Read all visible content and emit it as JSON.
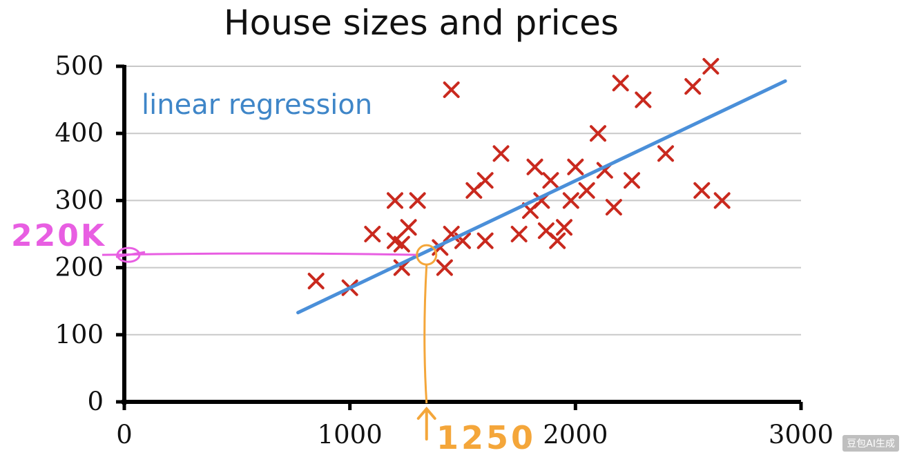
{
  "chart_data": {
    "type": "scatter",
    "title": "House sizes and prices",
    "xlabel": "",
    "ylabel": "",
    "xlim": [
      0,
      3000
    ],
    "ylim": [
      0,
      500
    ],
    "x_ticks": [
      "0",
      "1000",
      "2000",
      "3000"
    ],
    "y_ticks": [
      "0",
      "100",
      "200",
      "300",
      "400",
      "500"
    ],
    "grid": true,
    "series": [
      {
        "marker": "x",
        "color": "#c9291e",
        "points": [
          [
            850,
            180
          ],
          [
            1000,
            170
          ],
          [
            1100,
            250
          ],
          [
            1200,
            240
          ],
          [
            1200,
            300
          ],
          [
            1230,
            200
          ],
          [
            1230,
            235
          ],
          [
            1260,
            260
          ],
          [
            1300,
            300
          ],
          [
            1400,
            230
          ],
          [
            1420,
            200
          ],
          [
            1450,
            250
          ],
          [
            1450,
            465
          ],
          [
            1500,
            240
          ],
          [
            1550,
            315
          ],
          [
            1600,
            330
          ],
          [
            1600,
            240
          ],
          [
            1670,
            370
          ],
          [
            1750,
            250
          ],
          [
            1800,
            285
          ],
          [
            1820,
            350
          ],
          [
            1850,
            300
          ],
          [
            1870,
            255
          ],
          [
            1890,
            330
          ],
          [
            1920,
            240
          ],
          [
            1950,
            260
          ],
          [
            1980,
            300
          ],
          [
            2000,
            350
          ],
          [
            2050,
            315
          ],
          [
            2100,
            400
          ],
          [
            2130,
            345
          ],
          [
            2170,
            290
          ],
          [
            2200,
            475
          ],
          [
            2250,
            330
          ],
          [
            2300,
            450
          ],
          [
            2400,
            370
          ],
          [
            2520,
            470
          ],
          [
            2560,
            315
          ],
          [
            2600,
            500
          ],
          [
            2650,
            300
          ]
        ]
      },
      {
        "name": "linear regression",
        "type": "line",
        "color": "#4a8fd9",
        "points": [
          [
            770,
            133
          ],
          [
            2930,
            478
          ]
        ]
      }
    ],
    "annotations": {
      "y_callout": {
        "label": "220K",
        "value": 220,
        "color": "#e85ee2"
      },
      "x_callout": {
        "label": "1250",
        "value": 1250,
        "color": "#f4a63a"
      }
    }
  },
  "watermark": "豆包AI生成"
}
